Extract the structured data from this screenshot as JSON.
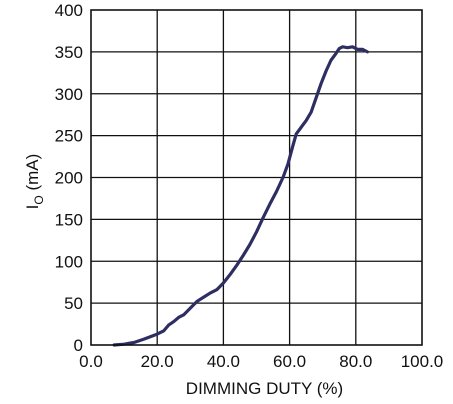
{
  "chart_data": {
    "type": "line",
    "xlabel": "DIMMING DUTY (%)",
    "ylabel": {
      "main": "I",
      "subscript": "O",
      "rest": " (mA)"
    },
    "xlim": [
      0,
      100
    ],
    "ylim": [
      0,
      400
    ],
    "x_ticks": [
      "0.0",
      "20.0",
      "40.0",
      "60.0",
      "80.0",
      "100.0"
    ],
    "y_ticks": [
      "0",
      "50",
      "100",
      "150",
      "200",
      "250",
      "300",
      "350",
      "400"
    ],
    "grid": true,
    "colors": {
      "series": "#2e2e62",
      "grid": "#111111"
    },
    "series": [
      {
        "points": [
          [
            7,
            0
          ],
          [
            10,
            1
          ],
          [
            13,
            3
          ],
          [
            16,
            7
          ],
          [
            18,
            10
          ],
          [
            20,
            13
          ],
          [
            22,
            17
          ],
          [
            23.5,
            24
          ],
          [
            25,
            28
          ],
          [
            26.5,
            33
          ],
          [
            28,
            36
          ],
          [
            30,
            44
          ],
          [
            32,
            52
          ],
          [
            34,
            57
          ],
          [
            36,
            62
          ],
          [
            38,
            66
          ],
          [
            40,
            74
          ],
          [
            42,
            84
          ],
          [
            44,
            95
          ],
          [
            46,
            107
          ],
          [
            48,
            120
          ],
          [
            50,
            135
          ],
          [
            52,
            152
          ],
          [
            54,
            168
          ],
          [
            56,
            183
          ],
          [
            58,
            200
          ],
          [
            59.5,
            216
          ],
          [
            61,
            238
          ],
          [
            62,
            252
          ],
          [
            63.5,
            260
          ],
          [
            65,
            268
          ],
          [
            66.5,
            278
          ],
          [
            68,
            295
          ],
          [
            69.5,
            312
          ],
          [
            71,
            327
          ],
          [
            72.5,
            340
          ],
          [
            74,
            348
          ],
          [
            75,
            354
          ],
          [
            76,
            356
          ],
          [
            77.5,
            355
          ],
          [
            79,
            356
          ],
          [
            80.5,
            353
          ],
          [
            82,
            353
          ],
          [
            83.5,
            350
          ]
        ]
      }
    ]
  }
}
